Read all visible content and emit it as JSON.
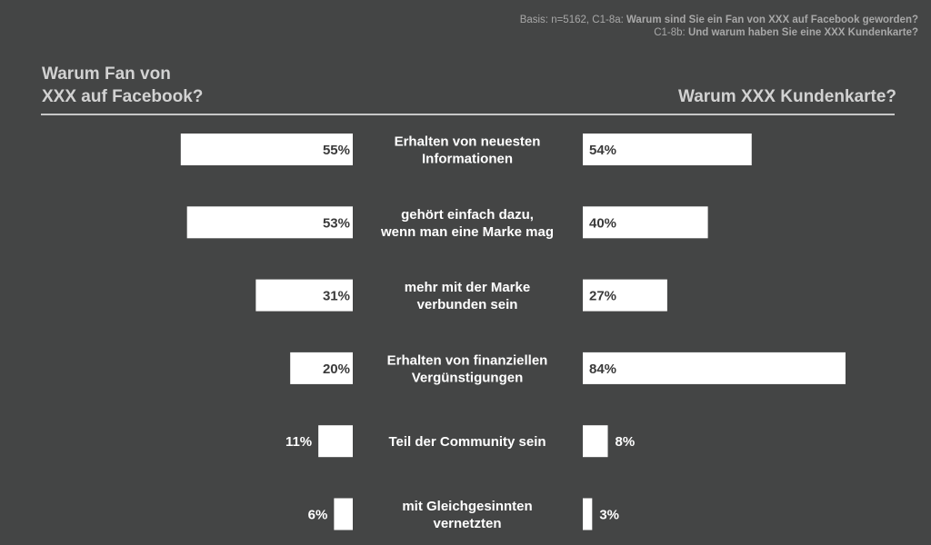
{
  "header": {
    "basis_prefix": "Basis: n=5162, C1-8a: ",
    "basis_q1": "Warum sind Sie ein Fan von XXX auf Facebook geworden?",
    "basis_prefix2": "C1-8b: ",
    "basis_q2": "Und warum haben Sie eine XXX Kundenkarte?",
    "left_title_line1": "Warum Fan von",
    "left_title_line2": "XXX auf Facebook?",
    "right_title": "Warum XXX Kundenkarte?"
  },
  "colors": {
    "background": "#444545",
    "bar": "#ffffff",
    "label_inside": "#3a3a3a",
    "label_outside": "#ffffff"
  },
  "chart_data": {
    "type": "bar",
    "orientation": "horizontal-butterfly",
    "categories": [
      [
        "Erhalten von neuesten",
        "Informationen"
      ],
      [
        "gehört einfach dazu,",
        "wenn man eine Marke mag"
      ],
      [
        "mehr mit der Marke",
        "verbunden sein"
      ],
      [
        "Erhalten von finanziellen",
        "Vergünstigungen"
      ],
      [
        "Teil der Community sein"
      ],
      [
        "mit Gleichgesinnten",
        "vernetzten"
      ]
    ],
    "series": [
      {
        "name": "Warum Fan von XXX auf Facebook?",
        "values": [
          55,
          53,
          31,
          20,
          11,
          6
        ],
        "labels": [
          "55%",
          "53%",
          "31%",
          "20%",
          "11%",
          "6%"
        ],
        "side": "left"
      },
      {
        "name": "Warum XXX Kundenkarte?",
        "values": [
          54,
          40,
          27,
          84,
          8,
          3
        ],
        "labels": [
          "54%",
          "40%",
          "27%",
          "84%",
          "8%",
          "3%"
        ],
        "side": "right"
      }
    ],
    "xlim": [
      0,
      100
    ],
    "grid": false,
    "legend": "none"
  }
}
